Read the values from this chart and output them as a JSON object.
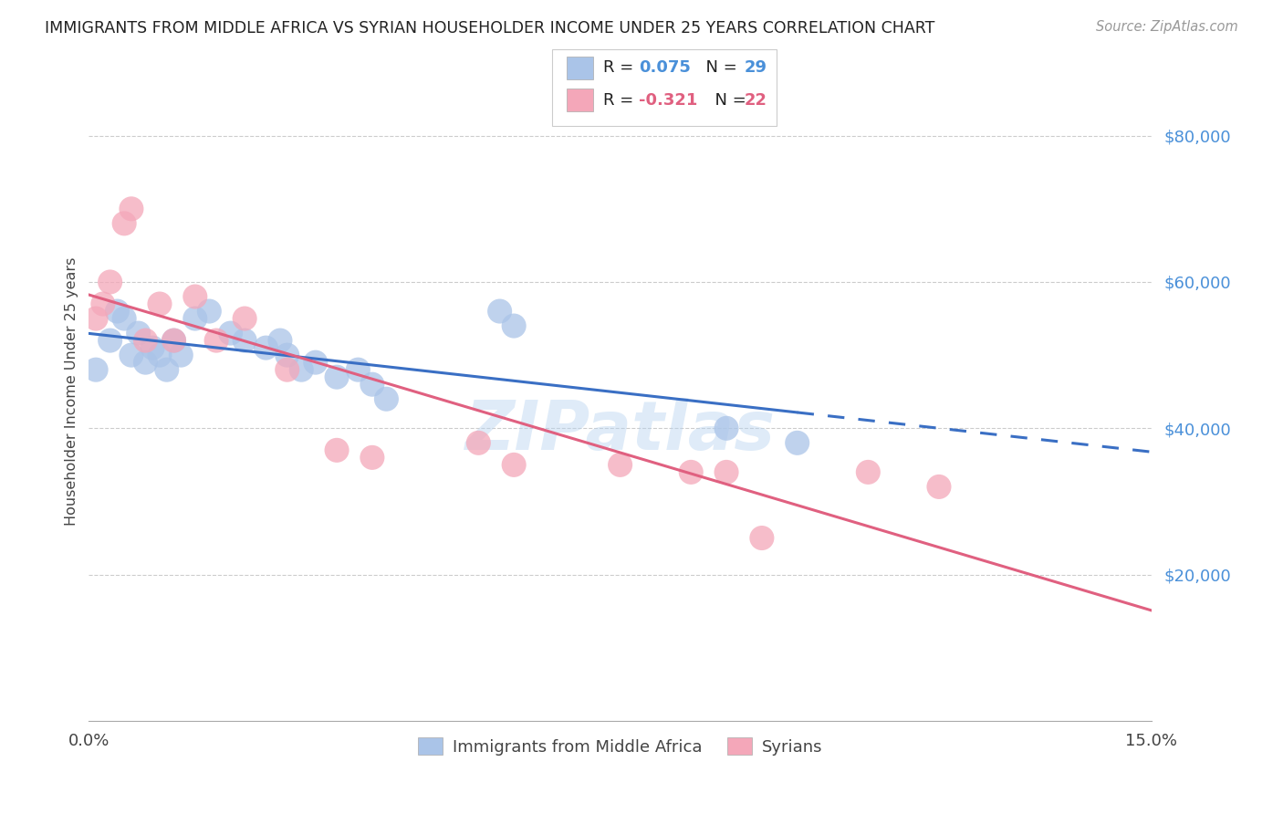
{
  "title": "IMMIGRANTS FROM MIDDLE AFRICA VS SYRIAN HOUSEHOLDER INCOME UNDER 25 YEARS CORRELATION CHART",
  "source": "Source: ZipAtlas.com",
  "ylabel": "Householder Income Under 25 years",
  "xlim": [
    0.0,
    0.15
  ],
  "ylim": [
    0,
    90000
  ],
  "yticks": [
    20000,
    40000,
    60000,
    80000
  ],
  "ytick_labels": [
    "$20,000",
    "$40,000",
    "$60,000",
    "$80,000"
  ],
  "blue_R": "0.075",
  "blue_N": "29",
  "pink_R": "-0.321",
  "pink_N": "22",
  "blue_color": "#aac4e8",
  "pink_color": "#f4a7b9",
  "blue_line_color": "#3a6fc4",
  "pink_line_color": "#e06080",
  "watermark": "ZIPatlas",
  "blue_line_solid_end": 0.1,
  "blue_scatter_x": [
    0.001,
    0.003,
    0.004,
    0.005,
    0.006,
    0.007,
    0.008,
    0.009,
    0.01,
    0.011,
    0.012,
    0.013,
    0.015,
    0.017,
    0.02,
    0.022,
    0.025,
    0.027,
    0.028,
    0.03,
    0.032,
    0.035,
    0.038,
    0.04,
    0.042,
    0.058,
    0.06,
    0.09,
    0.1
  ],
  "blue_scatter_y": [
    48000,
    52000,
    56000,
    55000,
    50000,
    53000,
    49000,
    51000,
    50000,
    48000,
    52000,
    50000,
    55000,
    56000,
    53000,
    52000,
    51000,
    52000,
    50000,
    48000,
    49000,
    47000,
    48000,
    46000,
    44000,
    56000,
    54000,
    40000,
    38000
  ],
  "pink_scatter_x": [
    0.001,
    0.002,
    0.003,
    0.005,
    0.006,
    0.008,
    0.01,
    0.012,
    0.015,
    0.018,
    0.022,
    0.028,
    0.035,
    0.04,
    0.055,
    0.06,
    0.075,
    0.085,
    0.09,
    0.095,
    0.11,
    0.12
  ],
  "pink_scatter_y": [
    55000,
    57000,
    60000,
    68000,
    70000,
    52000,
    57000,
    52000,
    58000,
    52000,
    55000,
    48000,
    37000,
    36000,
    38000,
    35000,
    35000,
    34000,
    34000,
    25000,
    34000,
    32000
  ]
}
